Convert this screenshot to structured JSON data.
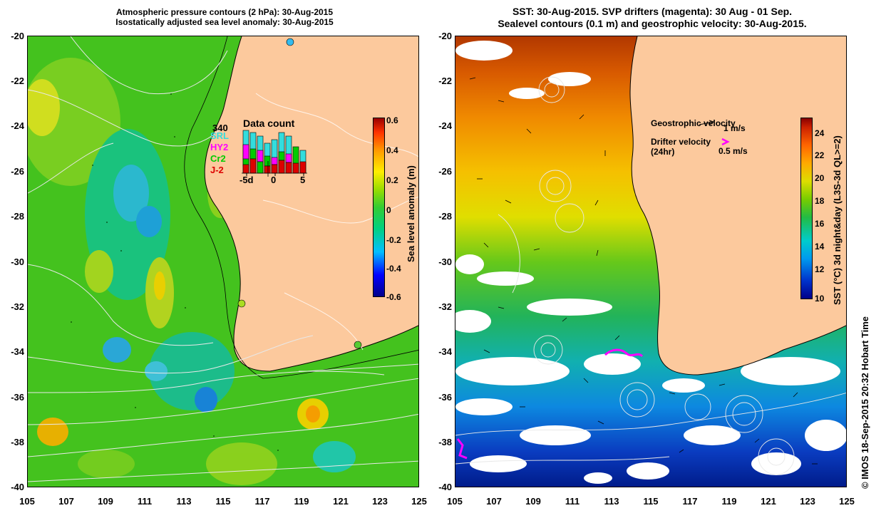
{
  "left_panel": {
    "title_line1": "Atmospheric pressure contours (2 hPa): 30-Aug-2015",
    "title_line2": "Isostatically adjusted sea level anomaly: 30-Aug-2015",
    "y_ticks": [
      "-20",
      "-22",
      "-24",
      "-26",
      "-28",
      "-30",
      "-32",
      "-34",
      "-36",
      "-38",
      "-40"
    ],
    "x_ticks": [
      "105",
      "107",
      "109",
      "111",
      "113",
      "115",
      "117",
      "119",
      "121",
      "123",
      "125"
    ],
    "colorbar_label": "Sea level anomaly (m)",
    "colorbar_ticks": [
      "0.6",
      "0.4",
      "0.2",
      "0",
      "-0.2",
      "-0.4",
      "-0.6"
    ],
    "inset": {
      "count": "340",
      "title": "Data count",
      "missions": [
        {
          "name": "SRL",
          "color": "#33dddd"
        },
        {
          "name": "HY2",
          "color": "#ff00ff"
        },
        {
          "name": "Cr2",
          "color": "#00cc00"
        },
        {
          "name": "J-2",
          "color": "#dd0000"
        }
      ],
      "x_ticks": [
        "-5d",
        "0",
        "5"
      ]
    }
  },
  "right_panel": {
    "title_line1": "SST: 30-Aug-2015. SVP drifters (magenta): 30 Aug - 01 Sep.",
    "title_line2": "Sealevel contours (0.1 m) and geostrophic velocity: 30-Aug-2015.",
    "y_ticks": [
      "-20",
      "-22",
      "-24",
      "-26",
      "-28",
      "-30",
      "-32",
      "-34",
      "-36",
      "-38",
      "-40"
    ],
    "x_ticks": [
      "105",
      "107",
      "109",
      "111",
      "113",
      "115",
      "117",
      "119",
      "121",
      "123",
      "125"
    ],
    "colorbar_label": "SST (°C) 3d night&day (L3S-3d QL>=2)",
    "colorbar_ticks": [
      "24",
      "22",
      "20",
      "18",
      "16",
      "14",
      "12",
      "10"
    ],
    "legend": {
      "geostrophic": "Geostrophic velocity",
      "geostrophic_scale": "1 m/s",
      "drifter_line1": "Drifter velocity",
      "drifter_line2": "(24hr)",
      "drifter_scale": "0.5 m/s"
    }
  },
  "credit": "© IMOS 18-Sep-2015 20:32 Hobart Time"
}
